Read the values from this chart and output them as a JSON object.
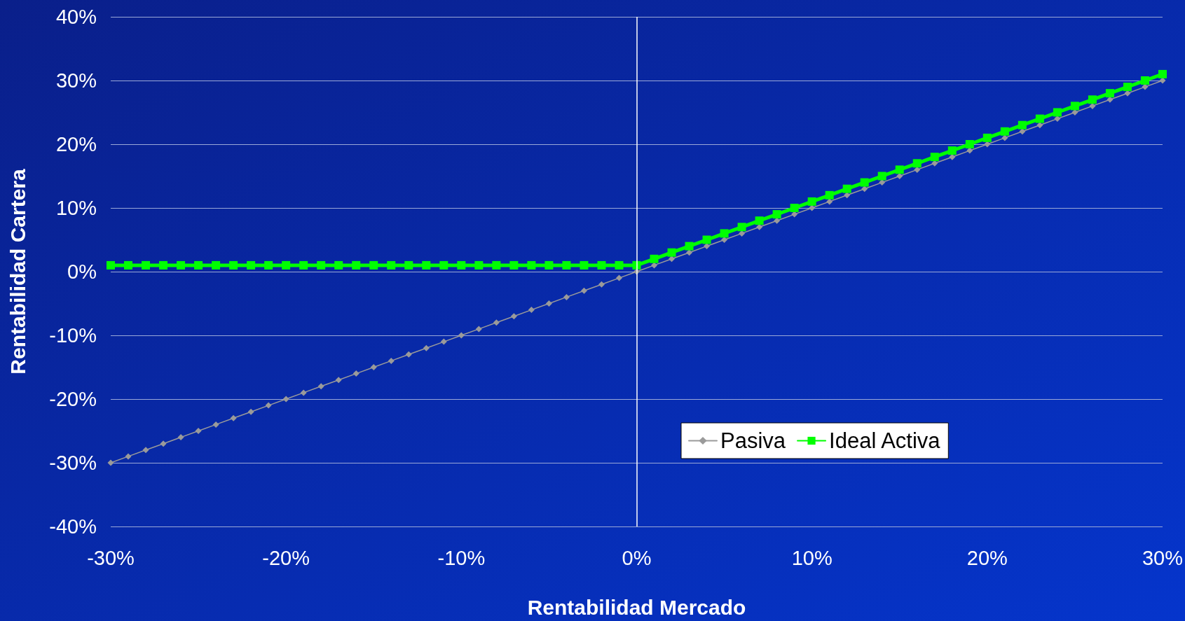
{
  "chart_data": {
    "type": "line",
    "xlabel": "Rentabilidad Mercado",
    "ylabel": "Rentabilidad Cartera",
    "x": [
      -30,
      -29,
      -28,
      -27,
      -26,
      -25,
      -24,
      -23,
      -22,
      -21,
      -20,
      -19,
      -18,
      -17,
      -16,
      -15,
      -14,
      -13,
      -12,
      -11,
      -10,
      -9,
      -8,
      -7,
      -6,
      -5,
      -4,
      -3,
      -2,
      -1,
      0,
      1,
      2,
      3,
      4,
      5,
      6,
      7,
      8,
      9,
      10,
      11,
      12,
      13,
      14,
      15,
      16,
      17,
      18,
      19,
      20,
      21,
      22,
      23,
      24,
      25,
      26,
      27,
      28,
      29,
      30
    ],
    "series": [
      {
        "name": "Pasiva",
        "color": "#9a9a9a",
        "marker": "diamond",
        "values": [
          -30,
          -29,
          -28,
          -27,
          -26,
          -25,
          -24,
          -23,
          -22,
          -21,
          -20,
          -19,
          -18,
          -17,
          -16,
          -15,
          -14,
          -13,
          -12,
          -11,
          -10,
          -9,
          -8,
          -7,
          -6,
          -5,
          -4,
          -3,
          -2,
          -1,
          0,
          1,
          2,
          3,
          4,
          5,
          6,
          7,
          8,
          9,
          10,
          11,
          12,
          13,
          14,
          15,
          16,
          17,
          18,
          19,
          20,
          21,
          22,
          23,
          24,
          25,
          26,
          27,
          28,
          29,
          30
        ]
      },
      {
        "name": "Ideal Activa",
        "color": "#00ff00",
        "marker": "square",
        "values": [
          1,
          1,
          1,
          1,
          1,
          1,
          1,
          1,
          1,
          1,
          1,
          1,
          1,
          1,
          1,
          1,
          1,
          1,
          1,
          1,
          1,
          1,
          1,
          1,
          1,
          1,
          1,
          1,
          1,
          1,
          1,
          2,
          3,
          4,
          5,
          6,
          7,
          8,
          9,
          10,
          11,
          12,
          13,
          14,
          15,
          16,
          17,
          18,
          19,
          20,
          21,
          22,
          23,
          24,
          25,
          26,
          27,
          28,
          29,
          30,
          31
        ]
      }
    ],
    "xlim": [
      -30,
      30
    ],
    "xticks": [
      {
        "value": -30,
        "label": "-30%"
      },
      {
        "value": -20,
        "label": "-20%"
      },
      {
        "value": -10,
        "label": "-10%"
      },
      {
        "value": 0,
        "label": "0%"
      },
      {
        "value": 10,
        "label": "10%"
      },
      {
        "value": 20,
        "label": "20%"
      },
      {
        "value": 30,
        "label": "30%"
      }
    ],
    "ylim": [
      -40,
      40
    ],
    "yticks": [
      {
        "value": -40,
        "label": "-40%"
      },
      {
        "value": -30,
        "label": "-30%"
      },
      {
        "value": -20,
        "label": "-20%"
      },
      {
        "value": -10,
        "label": "-10%"
      },
      {
        "value": 0,
        "label": "0%"
      },
      {
        "value": 10,
        "label": "10%"
      },
      {
        "value": 20,
        "label": "20%"
      },
      {
        "value": 30,
        "label": "30%"
      },
      {
        "value": 40,
        "label": "40%"
      }
    ],
    "grid": "y",
    "legend": "bottom right",
    "ref_lines": [
      {
        "axis": "x",
        "value": 0,
        "color": "#ffffff"
      }
    ]
  }
}
